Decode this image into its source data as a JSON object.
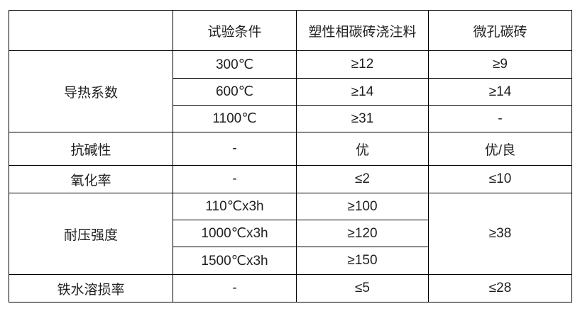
{
  "chart_data": {
    "type": "table",
    "title": "",
    "columns": [
      "",
      "试验条件",
      "塑性相碳砖浇注料",
      "微孔碳砖"
    ],
    "rows": [
      [
        "导热系数",
        "300℃",
        "≥12",
        "≥9"
      ],
      [
        "导热系数",
        "600℃",
        "≥14",
        "≥14"
      ],
      [
        "导热系数",
        "1100℃",
        "≥31",
        "-"
      ],
      [
        "抗碱性",
        "-",
        "优",
        "优/良"
      ],
      [
        "氧化率",
        "-",
        "≤2",
        "≤10"
      ],
      [
        "耐压强度",
        "110℃x3h",
        "≥100",
        "≥38"
      ],
      [
        "耐压强度",
        "1000℃x3h",
        "≥120",
        "≥38"
      ],
      [
        "耐压强度",
        "1500℃x3h",
        "≥150",
        "≥38"
      ],
      [
        "铁水溶损率",
        "-",
        "≤5",
        "≤28"
      ]
    ],
    "merges": [
      "导热系数 spans 3 rows in column 1",
      "耐压强度 spans 3 rows in column 1",
      "≥38 spans 3 rows in column 4 for 耐压强度",
      "top-left header cell is empty"
    ],
    "layout_hints": {
      "grid": "all borders black",
      "text_align": "center"
    }
  },
  "table": {
    "header": {
      "col1": "",
      "col2": "试验条件",
      "col3": "塑性相碳砖浇注料",
      "col4": "微孔碳砖"
    },
    "groups": {
      "thermal_conductivity": {
        "label": "导热系数"
      },
      "compressive_strength": {
        "label": "耐压强度"
      }
    },
    "rows": {
      "tc_300": {
        "condition": "300℃",
        "castable": "≥12",
        "brick": "≥9"
      },
      "tc_600": {
        "condition": "600℃",
        "castable": "≥14",
        "brick": "≥14"
      },
      "tc_1100": {
        "condition": "1100℃",
        "castable": "≥31",
        "brick": "-"
      },
      "alkali": {
        "label": "抗碱性",
        "condition": "-",
        "castable": "优",
        "brick": "优/良"
      },
      "oxidation": {
        "label": "氧化率",
        "condition": "-",
        "castable": "≤2",
        "brick": "≤10"
      },
      "cs_110": {
        "condition": "110℃x3h",
        "castable": "≥100"
      },
      "cs_1000": {
        "condition": "1000℃x3h",
        "castable": "≥120"
      },
      "cs_1500": {
        "condition": "1500℃x3h",
        "castable": "≥150"
      },
      "cs_brick_merged": {
        "value": "≥38"
      },
      "iron_loss": {
        "label": "铁水溶损率",
        "condition": "-",
        "castable": "≤5",
        "brick": "≤28"
      }
    }
  }
}
